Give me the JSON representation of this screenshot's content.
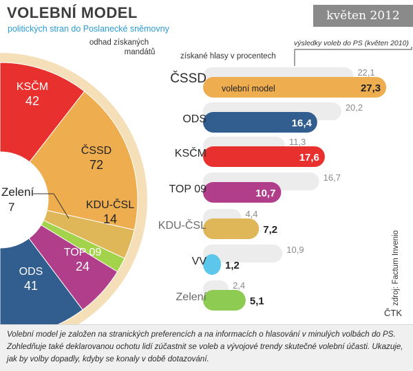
{
  "header": {
    "title": "VOLEBNÍ MODEL",
    "subtitle": "politických stran do Poslanecké sněmovny",
    "date": "květen 2012"
  },
  "labels": {
    "seats_header": "odhad získaných mandátů",
    "seats_header_line1": "odhad získaných",
    "seats_header_line2": "mandátů",
    "votes_header": "získané hlasy v procentech",
    "previous_header": "výsledky voleb do PS (květen 2010)",
    "model_label": "volební model",
    "source": "zdroj: Factum Invenio",
    "agency": "ČTK"
  },
  "footer_text": "Volební model je založen na stranických preferencích a na informacích o hlasování v minulých volbách do PS. Zohledňuje také deklarovanou ochotu lidí zúčastnit se voleb a vývojové trendy skutečné volební účasti. Ukazuje, jak by volby dopadly, kdyby se konaly v době dotazování.",
  "chart_data": [
    {
      "type": "pie",
      "title": "odhad získaných mandátů",
      "categories": [
        "KSČM",
        "ČSSD",
        "KDU-ČSL",
        "Zelení",
        "TOP 09",
        "ODS"
      ],
      "values": [
        42,
        72,
        14,
        7,
        24,
        41
      ],
      "value_labels": [
        "42",
        "72",
        "14",
        "7",
        "24",
        "41"
      ],
      "colors": [
        "#e8302e",
        "#eeae4f",
        "#e0b758",
        "#a3d24b",
        "#b03e8a",
        "#325d8f"
      ]
    },
    {
      "type": "bar",
      "title": "získané hlasy v procentech",
      "categories": [
        "ČSSD",
        "ODS",
        "KSČM",
        "TOP 09",
        "KDU-ČSL",
        "VV",
        "Zelení"
      ],
      "series": [
        {
          "name": "volební model",
          "values": [
            27.3,
            16.4,
            17.6,
            10.7,
            7.2,
            1.2,
            5.1
          ],
          "value_labels": [
            "27,3",
            "16,4",
            "17,6",
            "10,7",
            "7,2",
            "1,2",
            "5,1"
          ]
        },
        {
          "name": "výsledky voleb do PS (květen 2010)",
          "values": [
            22.1,
            20.2,
            11.3,
            16.7,
            4.4,
            10.9,
            2.4
          ],
          "value_labels": [
            "22,1",
            "20,2",
            "11,3",
            "16,7",
            "4,4",
            "10,9",
            "2,4"
          ]
        }
      ],
      "colors": [
        "#eeae4f",
        "#325d8f",
        "#e8302e",
        "#b03e8a",
        "#e0b758",
        "#5cc7ea",
        "#8ecb52"
      ],
      "previous_color": "#ececec"
    }
  ]
}
